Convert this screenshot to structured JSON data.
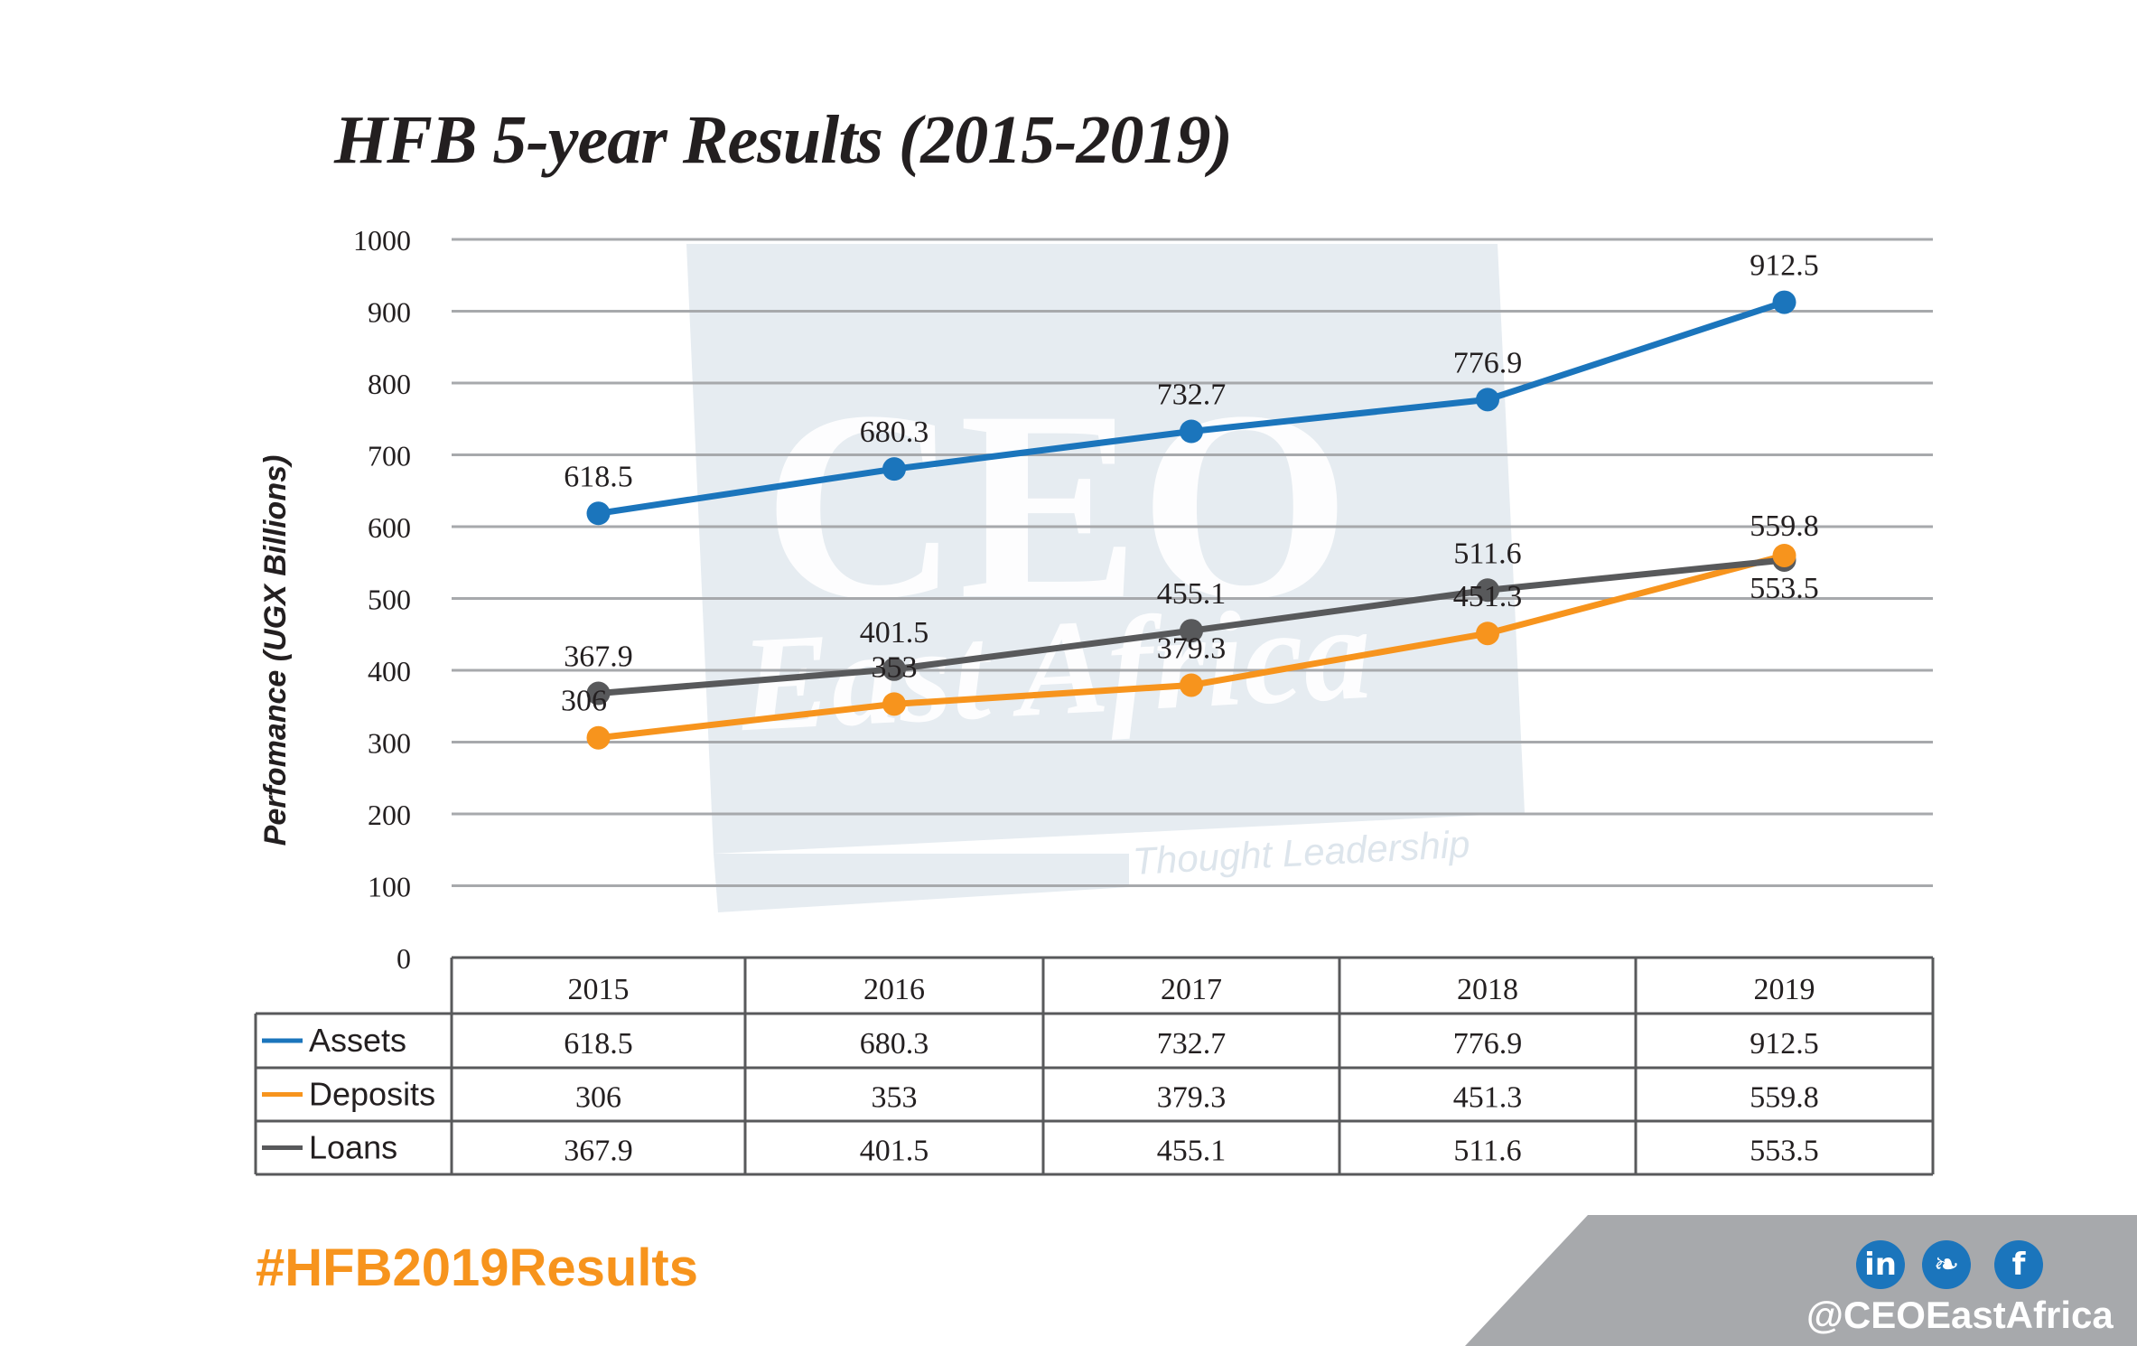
{
  "title": "HFB 5-year Results (2015-2019)",
  "watermark": {
    "line1": "CEO",
    "line2": "East Africa",
    "tagline": "Thought Leadership"
  },
  "chart_data": {
    "type": "line",
    "title": "HFB 5-year Results (2015-2019)",
    "ylabel": "Perfomance (UGX Billions)",
    "xlabel": "",
    "ylim": [
      0,
      1000
    ],
    "yticks": [
      "0",
      "100",
      "200",
      "300",
      "400",
      "500",
      "600",
      "700",
      "800",
      "900",
      "1000"
    ],
    "ytick_values": [
      0,
      100,
      200,
      300,
      400,
      500,
      600,
      700,
      800,
      900,
      1000
    ],
    "categories": [
      "2015",
      "2016",
      "2017",
      "2018",
      "2019"
    ],
    "grid": true,
    "legend": "data-table-bottom",
    "series": [
      {
        "name": "Assets",
        "color": "#1b75bc",
        "values": [
          618.5,
          680.3,
          732.7,
          776.9,
          912.5
        ],
        "labels": [
          "618.5",
          "680.3",
          "732.7",
          "776.9",
          "912.5"
        ]
      },
      {
        "name": "Deposits",
        "color": "#f7941d",
        "values": [
          306,
          353,
          379.3,
          451.3,
          559.8
        ],
        "labels": [
          "306",
          "353",
          "379.3",
          "451.3",
          "559.8"
        ]
      },
      {
        "name": "Loans",
        "color": "#58595b",
        "values": [
          367.9,
          401.5,
          455.1,
          511.6,
          553.5
        ],
        "labels": [
          "367.9",
          "401.5",
          "455.1",
          "511.6",
          "553.5"
        ]
      }
    ]
  },
  "footer": {
    "hashtag": "#HFB2019Results",
    "handle": "@CEOEastAfrica",
    "banner_color": "#a7a9ac",
    "social": [
      {
        "name": "linkedin",
        "glyph": "in"
      },
      {
        "name": "twitter",
        "glyph": "❧"
      },
      {
        "name": "facebook",
        "glyph": "f"
      }
    ]
  }
}
